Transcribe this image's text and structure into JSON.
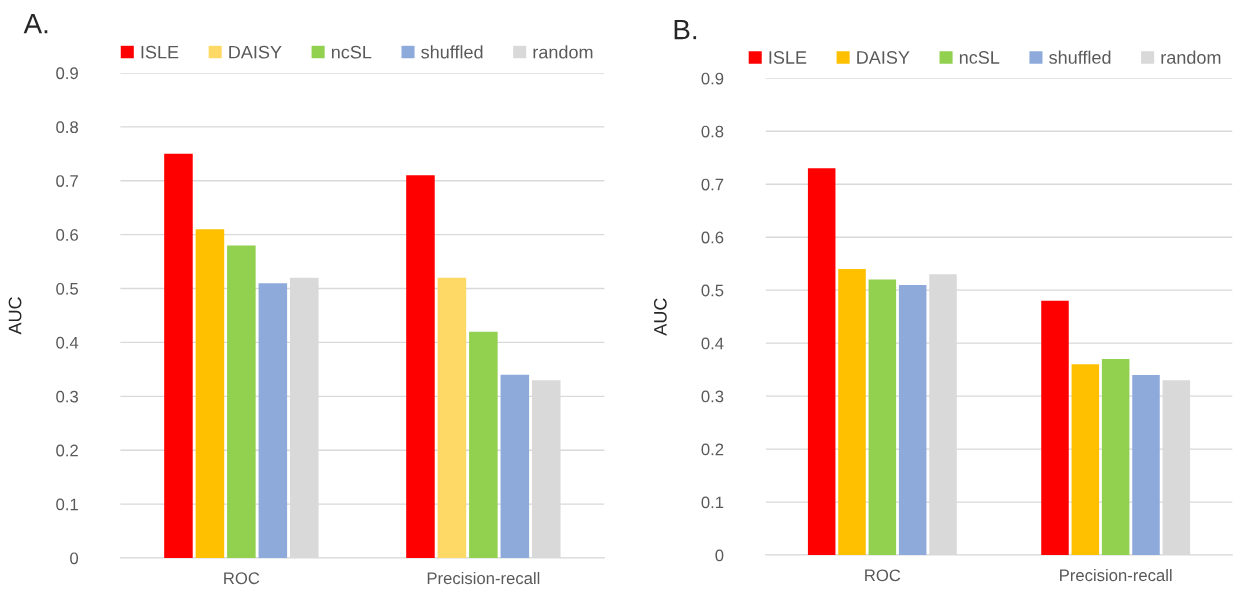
{
  "chart_data": [
    {
      "type": "bar",
      "title": "A.",
      "ylabel": "AUC",
      "categories": [
        "ROC",
        "Precision-recall"
      ],
      "series": [
        {
          "name": "ISLE",
          "color": "#ff0000",
          "values": [
            0.75,
            0.71
          ]
        },
        {
          "name": "DAISY",
          "color": "#ffd966",
          "colors": [
            "#ffc000",
            "#ffd966"
          ],
          "values": [
            0.61,
            0.52
          ]
        },
        {
          "name": "ncSL",
          "color": "#92d050",
          "values": [
            0.58,
            0.42
          ]
        },
        {
          "name": "shuffled",
          "color": "#8eaadb",
          "values": [
            0.51,
            0.34
          ]
        },
        {
          "name": "random",
          "color": "#d9d9d9",
          "values": [
            0.52,
            0.33
          ]
        }
      ],
      "ylim": [
        0,
        0.9
      ],
      "yticks": [
        0,
        0.1,
        0.2,
        0.3,
        0.4,
        0.5,
        0.6,
        0.7,
        0.8,
        0.9
      ],
      "grid": "y",
      "legend": "top"
    },
    {
      "type": "bar",
      "title": "B.",
      "ylabel": "AUC",
      "categories": [
        "ROC",
        "Precision-recall"
      ],
      "series": [
        {
          "name": "ISLE",
          "color": "#ff0000",
          "values": [
            0.73,
            0.48
          ]
        },
        {
          "name": "DAISY",
          "color": "#ffc000",
          "values": [
            0.54,
            0.36
          ]
        },
        {
          "name": "ncSL",
          "color": "#92d050",
          "values": [
            0.52,
            0.37
          ]
        },
        {
          "name": "shuffled",
          "color": "#8eaadb",
          "values": [
            0.51,
            0.34
          ]
        },
        {
          "name": "random",
          "color": "#d9d9d9",
          "values": [
            0.53,
            0.33
          ]
        }
      ],
      "ylim": [
        0,
        0.9
      ],
      "yticks": [
        0,
        0.1,
        0.2,
        0.3,
        0.4,
        0.5,
        0.6,
        0.7,
        0.8,
        0.9
      ],
      "grid": "y",
      "legend": "top"
    }
  ]
}
